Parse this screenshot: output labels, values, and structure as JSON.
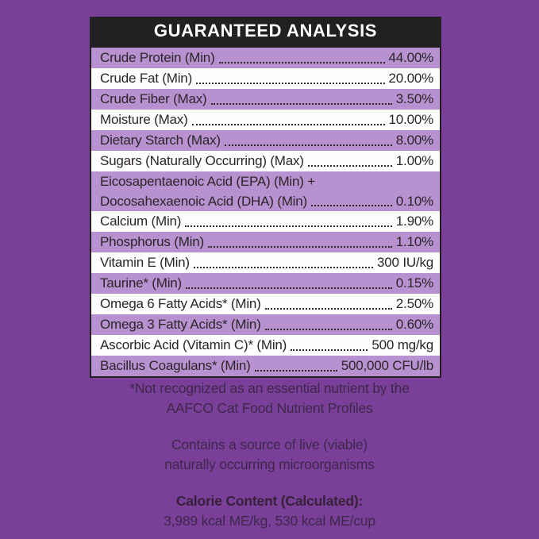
{
  "header": {
    "title": "GUARANTEED ANALYSIS"
  },
  "table": {
    "rows": [
      {
        "label": "Crude Protein (Min)",
        "value": "44.00%",
        "shade": "purple"
      },
      {
        "label": "Crude Fat (Min)",
        "value": "20.00%",
        "shade": "white"
      },
      {
        "label": "Crude Fiber (Max)",
        "value": "3.50%",
        "shade": "purple"
      },
      {
        "label": "Moisture (Max)",
        "value": "10.00%",
        "shade": "white"
      },
      {
        "label": "Dietary Starch (Max)",
        "value": "8.00%",
        "shade": "purple"
      },
      {
        "label": "Sugars (Naturally Occurring) (Max)",
        "value": "1.00%",
        "shade": "white"
      },
      {
        "label": "Eicosapentaenoic Acid (EPA) (Min) +",
        "label2": "Docosahexaenoic Acid (DHA) (Min)",
        "value": "0.10%",
        "shade": "purple"
      },
      {
        "label": "Calcium (Min)",
        "value": "1.90%",
        "shade": "white"
      },
      {
        "label": "Phosphorus (Min)",
        "value": "1.10%",
        "shade": "purple"
      },
      {
        "label": "Vitamin E (Min)",
        "value": "300 IU/kg",
        "shade": "white"
      },
      {
        "label": "Taurine* (Min)",
        "value": "0.15%",
        "shade": "purple"
      },
      {
        "label": "Omega 6 Fatty Acids* (Min)",
        "value": "2.50%",
        "shade": "white"
      },
      {
        "label": "Omega 3 Fatty Acids* (Min)",
        "value": "0.60%",
        "shade": "purple"
      },
      {
        "label": "Ascorbic Acid (Vitamin C)* (Min)",
        "value": "500 mg/kg",
        "shade": "white"
      },
      {
        "label": "Bacillus Coagulans* (Min)",
        "value": "500,000 CFU/lb",
        "shade": "purple"
      }
    ]
  },
  "footnotes": {
    "asterisk_note_line1": "*Not recognized as an essential nutrient by the",
    "asterisk_note_line2": "AAFCO Cat Food Nutrient Profiles",
    "micro_note_line1": "Contains a source of live (viable)",
    "micro_note_line2": "naturally occurring microorganisms",
    "calorie_heading": "Calorie Content (Calculated):",
    "calorie_values": "3,989 kcal ME/kg, 530 kcal ME/cup"
  },
  "colors": {
    "background": "#7a3f99",
    "row_purple": "#b891d0",
    "row_white": "#fefefe",
    "header_bg": "#232021",
    "header_text": "#ffffff",
    "row_text": "#2b2528",
    "footnote_text": "#3e2749",
    "footnote_bold_text": "#352139"
  }
}
